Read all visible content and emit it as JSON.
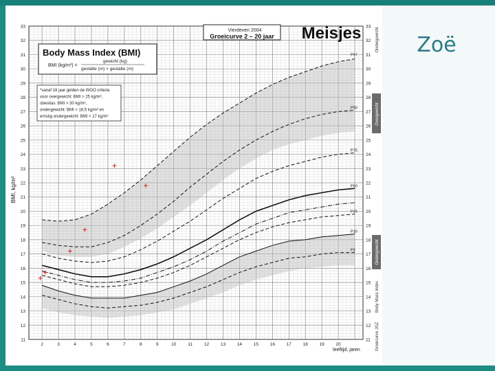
{
  "slide": {
    "name": "Zoë"
  },
  "chart_data": {
    "type": "line",
    "header": {
      "title": "Meisjes",
      "subtitle": "Groeicurve 2 – 20 jaar",
      "date_text": "Vierdeven 2004"
    },
    "box_title": "Body Mass Index (BMI)",
    "formula": {
      "lhs": "BMI (kg/m²) =",
      "numerator": "gewicht (kg)",
      "denominator": "gestalte (m) × gestalte (m)"
    },
    "note_lines": [
      "*vanaf 18 jaar gelden de WGO criteria",
      "voor overgewicht: BMI > 25 kg/m²,",
      "obesitas: BMI > 30 kg/m²,",
      "ondergewicht: BMI < 18,5 kg/m² en",
      "ernstig ondergewicht: BMI < 17 kg/m²"
    ],
    "xlabel": "leeftijd, jaren",
    "ylabel": "BMI, kg/m²",
    "xlim": [
      1.2,
      21.5
    ],
    "ylim": [
      11,
      33
    ],
    "x_ticks": [
      2,
      3,
      4,
      5,
      6,
      7,
      8,
      9,
      10,
      11,
      12,
      13,
      14,
      15,
      16,
      17,
      18,
      19,
      20
    ],
    "y_ticks": [
      11,
      12,
      13,
      14,
      15,
      16,
      17,
      18,
      19,
      20,
      21,
      22,
      23,
      24,
      25,
      26,
      27,
      28,
      29,
      30,
      31,
      32,
      33
    ],
    "grid": true,
    "series": [
      {
        "name": "P3",
        "style": "dashed",
        "x": [
          2,
          3,
          4,
          5,
          6,
          7,
          8,
          9,
          10,
          11,
          12,
          13,
          14,
          15,
          16,
          17,
          18,
          19,
          20,
          21
        ],
        "y": [
          14.1,
          13.8,
          13.5,
          13.3,
          13.2,
          13.3,
          13.4,
          13.6,
          13.9,
          14.3,
          14.7,
          15.2,
          15.7,
          16.1,
          16.4,
          16.7,
          16.8,
          17.0,
          17.1,
          17.1
        ]
      },
      {
        "name": "P10",
        "style": "solid",
        "x": [
          2,
          3,
          4,
          5,
          6,
          7,
          8,
          9,
          10,
          11,
          12,
          13,
          14,
          15,
          16,
          17,
          18,
          19,
          20,
          21
        ],
        "y": [
          14.8,
          14.4,
          14.1,
          13.9,
          13.9,
          13.9,
          14.1,
          14.3,
          14.7,
          15.1,
          15.6,
          16.2,
          16.8,
          17.2,
          17.6,
          17.9,
          18.0,
          18.2,
          18.3,
          18.4
        ]
      },
      {
        "name": "P25",
        "style": "dashed",
        "x": [
          2,
          3,
          4,
          5,
          6,
          7,
          8,
          9,
          10,
          11,
          12,
          13,
          14,
          15,
          16,
          17,
          18,
          19,
          20,
          21
        ],
        "y": [
          15.5,
          15.2,
          14.9,
          14.7,
          14.7,
          14.8,
          15.0,
          15.3,
          15.7,
          16.2,
          16.8,
          17.4,
          18.0,
          18.5,
          18.9,
          19.2,
          19.4,
          19.6,
          19.7,
          19.8
        ]
      },
      {
        "name": "P50",
        "style": "solid",
        "x": [
          2,
          3,
          4,
          5,
          6,
          7,
          8,
          9,
          10,
          11,
          12,
          13,
          14,
          15,
          16,
          17,
          18,
          19,
          20,
          21
        ],
        "y": [
          16.2,
          15.9,
          15.6,
          15.4,
          15.4,
          15.6,
          15.9,
          16.3,
          16.8,
          17.4,
          18.0,
          18.7,
          19.4,
          20.0,
          20.4,
          20.8,
          21.1,
          21.3,
          21.5,
          21.6
        ]
      },
      {
        "name": "P75",
        "style": "dashed",
        "x": [
          2,
          3,
          4,
          5,
          6,
          7,
          8,
          9,
          10,
          11,
          12,
          13,
          14,
          15,
          16,
          17,
          18,
          19,
          20,
          21
        ],
        "y": [
          17.0,
          16.7,
          16.5,
          16.4,
          16.5,
          16.8,
          17.3,
          17.9,
          18.6,
          19.3,
          20.1,
          20.9,
          21.6,
          22.3,
          22.8,
          23.2,
          23.5,
          23.8,
          24.0,
          24.1
        ]
      },
      {
        "name": "P90",
        "style": "dashed",
        "x": [
          2,
          3,
          4,
          5,
          6,
          7,
          8,
          9,
          10,
          11,
          12,
          13,
          14,
          15,
          16,
          17,
          18,
          19,
          20,
          21
        ],
        "y": [
          17.8,
          17.6,
          17.5,
          17.5,
          17.8,
          18.3,
          19.0,
          19.8,
          20.7,
          21.7,
          22.6,
          23.5,
          24.3,
          25.0,
          25.6,
          26.1,
          26.5,
          26.8,
          27.0,
          27.1
        ]
      },
      {
        "name": "P97",
        "style": "dashed",
        "x": [
          2,
          3,
          4,
          5,
          6,
          7,
          8,
          9,
          10,
          11,
          12,
          13,
          14,
          15,
          16,
          17,
          18,
          19,
          20,
          21
        ],
        "y": [
          19.4,
          19.3,
          19.4,
          19.8,
          20.5,
          21.3,
          22.2,
          23.2,
          24.2,
          25.2,
          26.1,
          26.9,
          27.6,
          28.3,
          28.9,
          29.4,
          29.8,
          30.2,
          30.5,
          30.7
        ]
      },
      {
        "name": "P3 (lower)",
        "style": "dashdot",
        "x": [
          2,
          3,
          4,
          5,
          6,
          7,
          8,
          9,
          10,
          11,
          12,
          13,
          14,
          15,
          16,
          17,
          18,
          19,
          20,
          21
        ],
        "y": [
          15.8,
          15.5,
          15.2,
          15.0,
          15.0,
          15.1,
          15.3,
          15.7,
          16.1,
          16.6,
          17.2,
          17.9,
          18.5,
          19.1,
          19.5,
          19.9,
          20.1,
          20.3,
          20.5,
          20.6
        ]
      }
    ],
    "shaded_bands": [
      {
        "x": [
          2,
          3,
          4,
          5,
          6,
          7,
          8,
          9,
          10,
          11,
          12,
          13,
          14,
          15,
          16,
          17,
          18,
          19,
          20,
          21
        ],
        "low": [
          17.2,
          16.9,
          16.8,
          16.8,
          17.0,
          17.5,
          18.1,
          18.8,
          19.6,
          20.4,
          21.3,
          22.2,
          23.0,
          23.7,
          24.3,
          24.7,
          25.0,
          25.3,
          25.5,
          25.6
        ],
        "high": [
          19.4,
          19.3,
          19.4,
          19.8,
          20.5,
          21.3,
          22.2,
          23.2,
          24.2,
          25.2,
          26.1,
          26.9,
          27.6,
          28.3,
          28.9,
          29.4,
          29.8,
          30.2,
          30.5,
          30.7
        ]
      },
      {
        "x": [
          2,
          3,
          4,
          5,
          6,
          7,
          8,
          9,
          10,
          11,
          12,
          13,
          14,
          15,
          16,
          17,
          18,
          19,
          20,
          21
        ],
        "low": [
          13.2,
          12.9,
          12.7,
          12.6,
          12.5,
          12.6,
          12.7,
          12.9,
          13.1,
          13.5,
          13.9,
          14.3,
          14.8,
          15.2,
          15.5,
          15.8,
          16.0,
          16.1,
          16.2,
          16.2
        ],
        "high": [
          14.8,
          14.4,
          14.1,
          13.9,
          13.9,
          13.9,
          14.1,
          14.3,
          14.7,
          15.1,
          15.6,
          16.2,
          16.8,
          17.2,
          17.6,
          17.9,
          18.0,
          18.2,
          18.3,
          18.4
        ]
      }
    ],
    "right_labels": [
      {
        "text": "P97",
        "y": 30.8
      },
      {
        "text": "P90",
        "y": 27.1
      },
      {
        "text": "P75",
        "y": 24.1
      },
      {
        "text": "P50",
        "y": 21.6
      },
      {
        "text": "P25",
        "y": 19.8
      },
      {
        "text": "P10",
        "y": 18.4
      },
      {
        "text": "P3",
        "y": 17.1
      }
    ],
    "measurements": [
      {
        "x": 1.9,
        "y": 15.3
      },
      {
        "x": 2.2,
        "y": 15.7
      },
      {
        "x": 3.7,
        "y": 17.2
      },
      {
        "x": 4.6,
        "y": 18.7
      },
      {
        "x": 6.4,
        "y": 23.2
      },
      {
        "x": 8.3,
        "y": 21.8
      }
    ],
    "side_label_top": "Overgewicht",
    "side_label_bottom": "Ondergewicht",
    "side_label_corner": "Ondergewicht",
    "side_notes_lower": [
      "Body Mass Index",
      "Groeicurve JGZ"
    ]
  }
}
